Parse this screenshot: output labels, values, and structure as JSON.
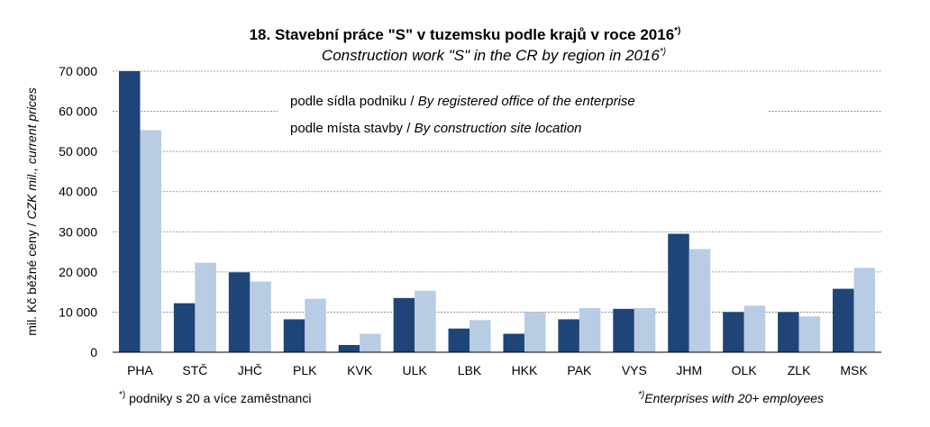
{
  "colors": {
    "series1": "#1f4477",
    "series2": "#b8cce4"
  },
  "chart_data": {
    "type": "bar",
    "title": "18. Stavební práce \"S\" v tuzemsku podle krajů v roce 2016",
    "title_mark": "*)",
    "subtitle": "Construction work \"S\" in the CR by region in 2016",
    "subtitle_mark": "*)",
    "ylabel_cz": "mil. Kč běžné ceny / ",
    "ylabel_en": "CZK mil., current prices",
    "ylim": [
      0,
      70000
    ],
    "yticks": [
      0,
      10000,
      20000,
      30000,
      40000,
      50000,
      60000,
      70000
    ],
    "ytick_labels": [
      "0",
      "10 000",
      "20 000",
      "30 000",
      "40 000",
      "50 000",
      "60 000",
      "70 000"
    ],
    "grid": true,
    "categories": [
      "PHA",
      "STČ",
      "JHČ",
      "PLK",
      "KVK",
      "ULK",
      "LBK",
      "HKK",
      "PAK",
      "VYS",
      "JHM",
      "OLK",
      "ZLK",
      "MSK"
    ],
    "series": [
      {
        "name_cz": "podle sídla podniku  /  ",
        "name_en": "By registered office of the enterprise",
        "values": [
          70000,
          12200,
          19900,
          8200,
          1800,
          13500,
          5900,
          4600,
          8200,
          10800,
          29500,
          10000,
          10000,
          15800
        ]
      },
      {
        "name_cz": "podle místa stavby / ",
        "name_en": "By construction site location",
        "values": [
          55300,
          22300,
          17600,
          13300,
          4600,
          15300,
          8000,
          10000,
          11000,
          11000,
          25700,
          11600,
          8900,
          21000
        ]
      }
    ],
    "legend_position": "top-center",
    "footnote_left_mark": "*)",
    "footnote_left": " podniky s 20 a více zaměstnanci",
    "footnote_right_mark": "*)",
    "footnote_right": "Enterprises with  20+ employees"
  }
}
